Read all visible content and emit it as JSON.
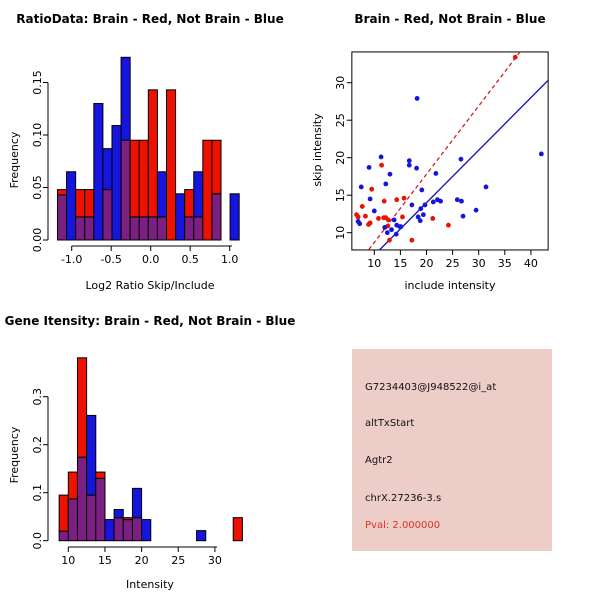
{
  "colors": {
    "red": "#ee1100",
    "blue": "#1515dd",
    "purple": "#7b2082",
    "red_line": "#cc2222",
    "blue_line": "#1111a8",
    "axis": "#000000",
    "panel_bg": "#eccdc7",
    "pval_red": "#dd3322",
    "text": "#111111"
  },
  "chart_data": [
    {
      "type": "bar",
      "title": "RatioData: Brain - Red, Not Brain - Blue",
      "xlabel": "Log2 Ratio Skip/Include",
      "ylabel": "Frequency",
      "legend": "overlaid histograms: Brain (red), Not Brain (blue), overlap purple",
      "bin_start": -1.18,
      "bin_width": 0.115,
      "series": [
        {
          "name": "Brain",
          "color_key": "red",
          "values": [
            0.048,
            0,
            0.048,
            0.048,
            0,
            0.048,
            0,
            0.095,
            0.095,
            0.095,
            0.143,
            0.022,
            0.143,
            0,
            0.048,
            0.022,
            0.095,
            0.095,
            0,
            0
          ]
        },
        {
          "name": "Not Brain",
          "color_key": "blue",
          "values": [
            0.043,
            0.065,
            0.022,
            0.022,
            0.13,
            0.087,
            0.109,
            0.174,
            0.022,
            0.022,
            0.022,
            0.065,
            0,
            0.044,
            0.022,
            0.065,
            0,
            0.044,
            0,
            0.044
          ]
        }
      ],
      "xticks": [
        "-1.0",
        "-0.5",
        "0.0",
        "0.5",
        "1.0"
      ],
      "xtick_values": [
        -1.0,
        -0.5,
        0.0,
        0.5,
        1.0
      ],
      "yticks": [
        "0.00",
        "0.05",
        "0.10",
        "0.15"
      ],
      "ytick_values": [
        0.0,
        0.05,
        0.1,
        0.15
      ],
      "xlim": [
        -1.3,
        1.3
      ],
      "ylim": [
        0,
        0.18
      ],
      "grid": false
    },
    {
      "type": "scatter",
      "title": "Brain - Red, Not Brain - Blue",
      "xlabel": "include intensity",
      "ylabel": "skip intensity",
      "xticks": [
        "10",
        "15",
        "20",
        "25",
        "30",
        "35",
        "40"
      ],
      "xtick_values": [
        10,
        15,
        20,
        25,
        30,
        35,
        40
      ],
      "yticks": [
        "10",
        "15",
        "20",
        "25",
        "30"
      ],
      "ytick_values": [
        10,
        15,
        20,
        25,
        30
      ],
      "xlim": [
        5.7,
        43.3
      ],
      "ylim": [
        7.7,
        34.1
      ],
      "grid": false,
      "series": [
        {
          "name": "Brain",
          "color_key": "red",
          "points": [
            [
              37,
              33.4
            ],
            [
              11.4,
              19.0
            ],
            [
              9.5,
              15.8
            ],
            [
              14.3,
              14.4
            ],
            [
              15.7,
              14.6
            ],
            [
              11.9,
              14.2
            ],
            [
              7.7,
              13.5
            ],
            [
              6.6,
              12.4
            ],
            [
              8.3,
              12.2
            ],
            [
              6.9,
              12.1
            ],
            [
              10.8,
              11.9
            ],
            [
              11.8,
              12.0
            ],
            [
              12.2,
              12.0
            ],
            [
              12.7,
              11.7
            ],
            [
              15.4,
              12.1
            ],
            [
              21.2,
              11.9
            ],
            [
              9.2,
              11.3
            ],
            [
              8.9,
              11.1
            ],
            [
              24.2,
              11.0
            ],
            [
              12.6,
              10.9
            ],
            [
              12.9,
              9.0
            ],
            [
              17.2,
              9.0
            ]
          ]
        },
        {
          "name": "Not Brain",
          "color_key": "blue",
          "points": [
            [
              18.2,
              27.9
            ],
            [
              42,
              20.5
            ],
            [
              11.3,
              20.1
            ],
            [
              26.6,
              19.8
            ],
            [
              16.7,
              19.6
            ],
            [
              16.7,
              19.0
            ],
            [
              9.0,
              18.7
            ],
            [
              18.1,
              18.6
            ],
            [
              21.8,
              17.9
            ],
            [
              13.0,
              17.8
            ],
            [
              12.2,
              16.5
            ],
            [
              7.5,
              16.1
            ],
            [
              31.4,
              16.1
            ],
            [
              19.1,
              15.7
            ],
            [
              9.2,
              14.5
            ],
            [
              25.9,
              14.4
            ],
            [
              22.1,
              14.4
            ],
            [
              26.7,
              14.2
            ],
            [
              22.7,
              14.2
            ],
            [
              21.3,
              14.1
            ],
            [
              17.2,
              13.7
            ],
            [
              19.7,
              13.7
            ],
            [
              18.9,
              13.2
            ],
            [
              29.5,
              13.0
            ],
            [
              10.0,
              12.9
            ],
            [
              19.4,
              12.4
            ],
            [
              27.0,
              12.2
            ],
            [
              18.4,
              12.1
            ],
            [
              13.8,
              11.7
            ],
            [
              18.8,
              11.6
            ],
            [
              7.2,
              11.2
            ],
            [
              6.9,
              11.5
            ],
            [
              14.3,
              11.0
            ],
            [
              15.1,
              10.8
            ],
            [
              12.0,
              10.7
            ],
            [
              13.3,
              10.4
            ],
            [
              12.5,
              10.0
            ],
            [
              14.2,
              9.8
            ],
            [
              14.9,
              10.8
            ]
          ]
        }
      ],
      "lines": [
        {
          "name": "brain-fit",
          "color_key": "red_line",
          "style": "dashed",
          "slope": 0.91,
          "intercept": -0.4
        },
        {
          "name": "notbrain-fit",
          "color_key": "blue_line",
          "style": "solid",
          "slope": 0.7,
          "intercept": 0.0
        }
      ]
    },
    {
      "type": "bar",
      "title": "Gene Itensity: Brain - Red, Not Brain - Blue",
      "xlabel": "Intensity",
      "ylabel": "Frequency",
      "legend": "overlaid histograms: Brain (red), Not Brain (blue), overlap purple",
      "bin_start": 8.75,
      "bin_width": 1.25,
      "series": [
        {
          "name": "Brain",
          "color_key": "red",
          "values": [
            0.095,
            0.143,
            0.381,
            0.095,
            0.143,
            0,
            0.048,
            0.048,
            0.048,
            0,
            0,
            0,
            0,
            0,
            0,
            0,
            0,
            0,
            0,
            0.048
          ]
        },
        {
          "name": "Not Brain",
          "color_key": "blue",
          "values": [
            0.02,
            0.087,
            0.174,
            0.261,
            0.13,
            0.044,
            0.065,
            0.044,
            0.109,
            0.044,
            0,
            0,
            0,
            0,
            0,
            0.021,
            0,
            0,
            0,
            0
          ]
        }
      ],
      "xticks": [
        "10",
        "15",
        "20",
        "25",
        "30"
      ],
      "xtick_values": [
        10,
        15,
        20,
        25,
        30
      ],
      "yticks": [
        "0.0",
        "0.1",
        "0.2",
        "0.3"
      ],
      "ytick_values": [
        0.0,
        0.1,
        0.2,
        0.3
      ],
      "xlim": [
        8,
        34
      ],
      "ylim": [
        0,
        0.4
      ],
      "grid": false
    }
  ],
  "info_panel": {
    "lines": [
      "G7234403@J948522@i_at",
      "altTxStart",
      "Agtr2",
      "chrX.27236-3.s"
    ],
    "pval": "Pval: 2.000000"
  }
}
